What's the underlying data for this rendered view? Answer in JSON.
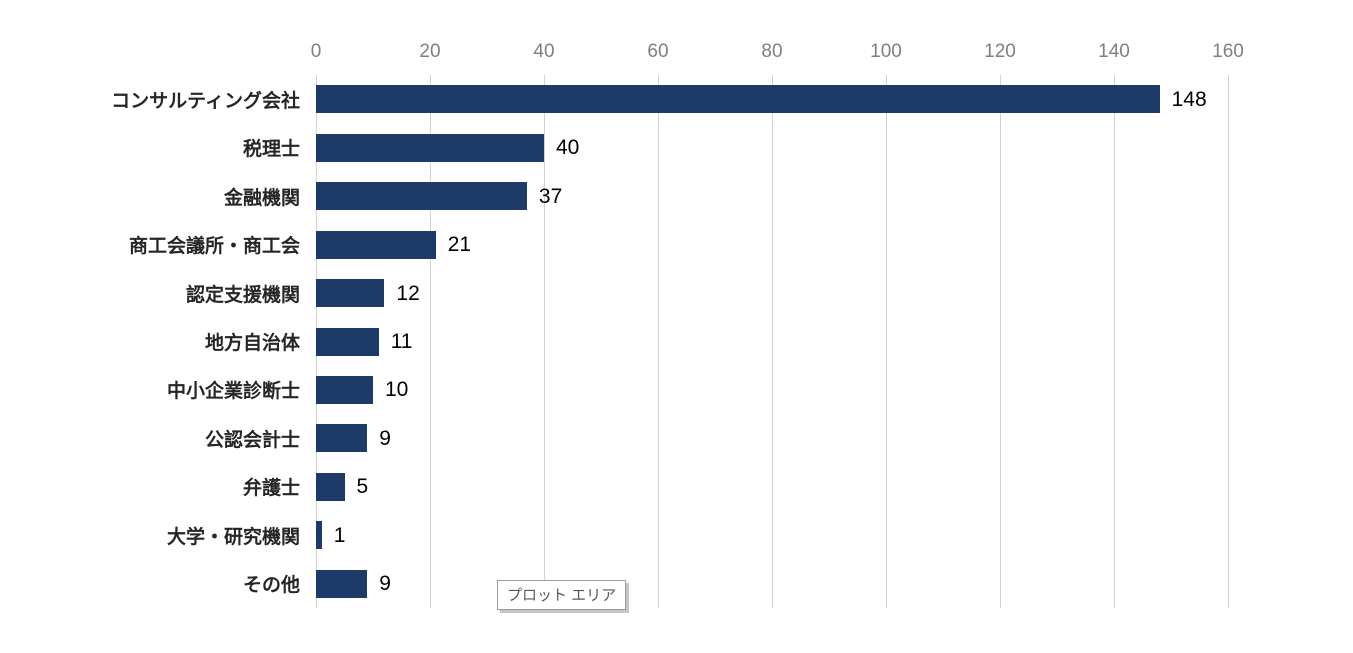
{
  "chart_data": {
    "type": "bar",
    "orientation": "horizontal",
    "title": "",
    "xlabel": "",
    "ylabel": "",
    "categories": [
      "コンサルティング会社",
      "税理士",
      "金融機関",
      "商工会議所・商工会",
      "認定支援機関",
      "地方自治体",
      "中小企業診断士",
      "公認会計士",
      "弁護士",
      "大学・研究機関",
      "その他"
    ],
    "values": [
      148,
      40,
      37,
      21,
      12,
      11,
      10,
      9,
      5,
      1,
      9
    ],
    "xlim": [
      0,
      160
    ],
    "xticks": [
      0,
      20,
      40,
      60,
      80,
      100,
      120,
      140,
      160
    ],
    "axis_position": "top",
    "grid": true,
    "legend": false,
    "data_labels": true,
    "colors": {
      "bar": "#1E3A68",
      "gridline": "#d2d2d2",
      "tick_label": "#7f7f7f",
      "category_label": "#262626",
      "value_label": "#000000"
    }
  },
  "tooltip": {
    "label": "プロット エリア"
  }
}
